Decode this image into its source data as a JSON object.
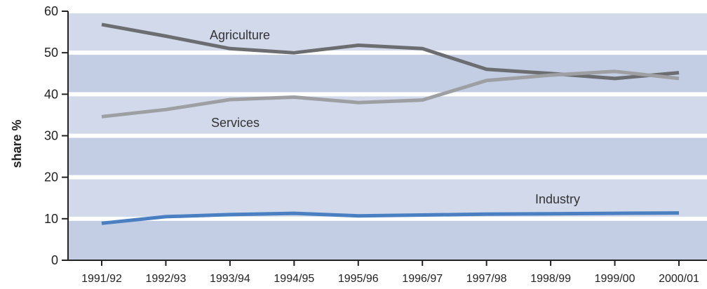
{
  "chart_data": {
    "type": "line",
    "ylabel": "share %",
    "ylim": [
      0,
      60
    ],
    "yticks": [
      0,
      10,
      20,
      30,
      40,
      50,
      60
    ],
    "grid": true,
    "categories": [
      "1991/92",
      "1992/93",
      "1993/94",
      "1994/95",
      "1995/96",
      "1996/97",
      "1997/98",
      "1998/99",
      "1999/00",
      "2000/01"
    ],
    "series": [
      {
        "name": "Agriculture",
        "color": "#6b6d70",
        "values": [
          56.8,
          54.0,
          51.0,
          50.0,
          51.8,
          51.0,
          46.0,
          45.0,
          43.8,
          45.2
        ]
      },
      {
        "name": "Services",
        "color": "#9d9fa2",
        "values": [
          34.6,
          36.3,
          38.7,
          39.3,
          38.0,
          38.6,
          43.3,
          44.6,
          45.5,
          43.8
        ]
      },
      {
        "name": "Industry",
        "color": "#4a7fc1",
        "values": [
          8.9,
          10.5,
          11.0,
          11.3,
          10.7,
          10.9,
          11.1,
          11.2,
          11.3,
          11.4
        ]
      }
    ],
    "colors": {
      "band_dark": "#c3cde3",
      "band_light": "#d1d9eb",
      "grid": "#ffffff",
      "axis": "#222222"
    }
  }
}
